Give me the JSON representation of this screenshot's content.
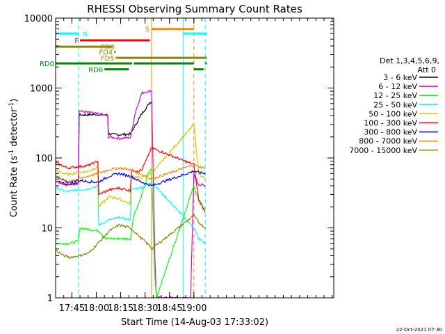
{
  "chart_data": {
    "type": "line",
    "title": "RHESSI Observing Summary Count Rates",
    "xlabel": "Start Time (14-Aug-03 17:33:02)",
    "ylabel_main": "Count Rate (s",
    "ylabel_sup1": "-1",
    "ylabel_mid": " detector",
    "ylabel_sup2": "-1",
    "ylabel_end": ")",
    "y_scale": "log",
    "ylim": [
      1,
      10000
    ],
    "xlim_min": [
      1055,
      1226
    ],
    "x_ticks": [
      {
        "t": 1065,
        "label": "17:45"
      },
      {
        "t": 1080,
        "label": "18:00"
      },
      {
        "t": 1095,
        "label": "18:15"
      },
      {
        "t": 1110,
        "label": "18:30"
      },
      {
        "t": 1125,
        "label": "18:45"
      },
      {
        "t": 1140,
        "label": "19:00"
      }
    ],
    "y_ticks": [
      {
        "v": 1,
        "label": "1"
      },
      {
        "v": 10,
        "label": "10"
      },
      {
        "v": 100,
        "label": "100"
      },
      {
        "v": 1000,
        "label": "1000"
      },
      {
        "v": 10000,
        "label": "10000"
      }
    ],
    "legend_header": [
      "Det 1,3,4,5,6,9,",
      "Att 0"
    ],
    "series": [
      {
        "name": "3 - 6 keV",
        "color": "#000000",
        "points": [
          [
            1054,
            48
          ],
          [
            1062,
            42
          ],
          [
            1069,
            44
          ],
          [
            1069.5,
            410
          ],
          [
            1080,
            420
          ],
          [
            1087,
            410
          ],
          [
            1087.5,
            220
          ],
          [
            1094,
            215
          ],
          [
            1101,
            220
          ],
          [
            1108,
            430
          ],
          [
            1113,
            620
          ],
          [
            1114,
            640
          ]
        ]
      },
      {
        "name": "6 - 12 keV",
        "color": "#e000e0",
        "points": [
          [
            1054,
            48
          ],
          [
            1062,
            41
          ],
          [
            1069,
            43
          ],
          [
            1069.5,
            470
          ],
          [
            1080,
            430
          ],
          [
            1087,
            400
          ],
          [
            1087.5,
            200
          ],
          [
            1094,
            190
          ],
          [
            1101,
            195
          ],
          [
            1104,
            450
          ],
          [
            1108,
            850
          ],
          [
            1114,
            920
          ],
          [
            1116,
            4
          ],
          [
            1117,
            1
          ],
          [
            1125,
            1
          ],
          [
            1138,
            1
          ],
          [
            1140,
            58
          ],
          [
            1143,
            42
          ],
          [
            1147,
            40
          ]
        ]
      },
      {
        "name": "12 - 25 keV",
        "color": "#00ff00",
        "points": [
          [
            1054,
            6
          ],
          [
            1064,
            6
          ],
          [
            1069,
            6.5
          ],
          [
            1070,
            10
          ],
          [
            1082,
            9
          ],
          [
            1086,
            7
          ],
          [
            1093,
            7
          ],
          [
            1101,
            7
          ],
          [
            1103,
            15
          ],
          [
            1107,
            25
          ],
          [
            1112,
            60
          ],
          [
            1114,
            70
          ],
          [
            1116,
            2
          ],
          [
            1117,
            1
          ],
          [
            1140,
            40
          ],
          [
            1143,
            25
          ],
          [
            1147,
            18
          ]
        ]
      },
      {
        "name": "25 - 50 keV",
        "color": "#00ffff",
        "points": [
          [
            1054,
            38
          ],
          [
            1062,
            33
          ],
          [
            1069,
            35
          ],
          [
            1075,
            36
          ],
          [
            1081,
            40
          ],
          [
            1081.5,
            11
          ],
          [
            1088,
            13
          ],
          [
            1094,
            14
          ],
          [
            1101,
            13
          ],
          [
            1101.5,
            35
          ],
          [
            1108,
            38
          ],
          [
            1114,
            45
          ],
          [
            1140,
            10
          ],
          [
            1143,
            7
          ],
          [
            1147,
            6
          ]
        ]
      },
      {
        "name": "50 - 100 keV",
        "color": "#cccc00",
        "points": [
          [
            1054,
            68
          ],
          [
            1062,
            58
          ],
          [
            1069,
            62
          ],
          [
            1075,
            64
          ],
          [
            1081,
            75
          ],
          [
            1081.5,
            20
          ],
          [
            1088,
            28
          ],
          [
            1094,
            26
          ],
          [
            1101,
            22
          ],
          [
            1101.5,
            55
          ],
          [
            1108,
            52
          ],
          [
            1114,
            60
          ],
          [
            1140,
            300
          ],
          [
            1143,
            60
          ],
          [
            1147,
            50
          ]
        ]
      },
      {
        "name": "100 - 300 keV",
        "color": "#ff0000",
        "points": [
          [
            1054,
            88
          ],
          [
            1062,
            72
          ],
          [
            1069,
            75
          ],
          [
            1075,
            78
          ],
          [
            1081,
            90
          ],
          [
            1081.5,
            30
          ],
          [
            1088,
            35
          ],
          [
            1094,
            37
          ],
          [
            1101,
            34
          ],
          [
            1101.5,
            65
          ],
          [
            1108,
            67
          ],
          [
            1114,
            140
          ],
          [
            1140,
            80
          ],
          [
            1143,
            25
          ],
          [
            1147,
            17
          ]
        ]
      },
      {
        "name": "300 - 800 keV",
        "color": "#0000ff",
        "points": [
          [
            1054,
            55
          ],
          [
            1062,
            45
          ],
          [
            1069,
            48
          ],
          [
            1075,
            46
          ],
          [
            1081,
            45
          ],
          [
            1088,
            55
          ],
          [
            1094,
            60
          ],
          [
            1101,
            55
          ],
          [
            1108,
            45
          ],
          [
            1114,
            40
          ],
          [
            1140,
            65
          ],
          [
            1143,
            62
          ],
          [
            1147,
            60
          ]
        ]
      },
      {
        "name": "800 - 7000 keV",
        "color": "#ff8800",
        "points": [
          [
            1054,
            58
          ],
          [
            1062,
            46
          ],
          [
            1069,
            50
          ],
          [
            1075,
            55
          ],
          [
            1081,
            60
          ],
          [
            1088,
            68
          ],
          [
            1094,
            72
          ],
          [
            1101,
            68
          ],
          [
            1108,
            58
          ],
          [
            1114,
            50
          ],
          [
            1140,
            80
          ],
          [
            1143,
            75
          ],
          [
            1147,
            72
          ]
        ]
      },
      {
        "name": "7000 - 15000 keV",
        "color": "#888800",
        "points": [
          [
            1054,
            5
          ],
          [
            1060,
            4
          ],
          [
            1064,
            3.8
          ],
          [
            1069,
            4
          ],
          [
            1075,
            4.3
          ],
          [
            1081,
            6
          ],
          [
            1088,
            9
          ],
          [
            1094,
            11
          ],
          [
            1101,
            10
          ],
          [
            1108,
            7
          ],
          [
            1113,
            5.5
          ],
          [
            1114,
            5
          ],
          [
            1140,
            15
          ],
          [
            1143,
            12
          ],
          [
            1147,
            10
          ]
        ]
      }
    ],
    "flag_bars": [
      {
        "label": "N",
        "color": "#00ffff",
        "segments": [
          [
            1054,
            1069
          ],
          [
            1133.5,
            1148
          ]
        ],
        "v": 6000
      },
      {
        "label": "F",
        "color": "#ff0000",
        "segments": [
          [
            1070,
            1113
          ]
        ],
        "v": 4800
      },
      {
        "label": "S",
        "color": "#ff8800",
        "segments": [
          [
            1114,
            1140
          ]
        ],
        "v": 7000
      },
      {
        "label": "FD3",
        "color": "#888800",
        "segments": [
          [
            1054,
            1090
          ]
        ],
        "v": 3900
      },
      {
        "label": "FD4",
        "color": "#888800",
        "segments": [
          [
            1091,
            1092
          ]
        ],
        "v": 3300
      },
      {
        "label": "FD5",
        "color": "#888800",
        "segments": [
          [
            1092,
            1148
          ]
        ],
        "v": 2700
      },
      {
        "label": "RD0",
        "color": "#008800",
        "segments": [
          [
            1054,
            1102
          ],
          [
            1103,
            1140
          ],
          [
            1147,
            1148
          ]
        ],
        "v": 2250
      },
      {
        "label": "RD6",
        "color": "#008800",
        "segments": [
          [
            1085,
            1100
          ],
          [
            1140,
            1146
          ]
        ],
        "v": 1850
      }
    ],
    "vlines": [
      {
        "t": 1055,
        "color": "#00ffff",
        "style": "solid"
      },
      {
        "t": 1069,
        "color": "#00ffff",
        "style": "dashed"
      },
      {
        "t": 1114,
        "color": "#ff8800",
        "style": "solid"
      },
      {
        "t": 1133.5,
        "color": "#00ffff",
        "style": "solid"
      },
      {
        "t": 1140,
        "color": "#ff8800",
        "style": "dashed"
      },
      {
        "t": 1147,
        "color": "#00ffff",
        "style": "dashed"
      }
    ],
    "timestamp": "22-Oct-2021 07:30"
  }
}
